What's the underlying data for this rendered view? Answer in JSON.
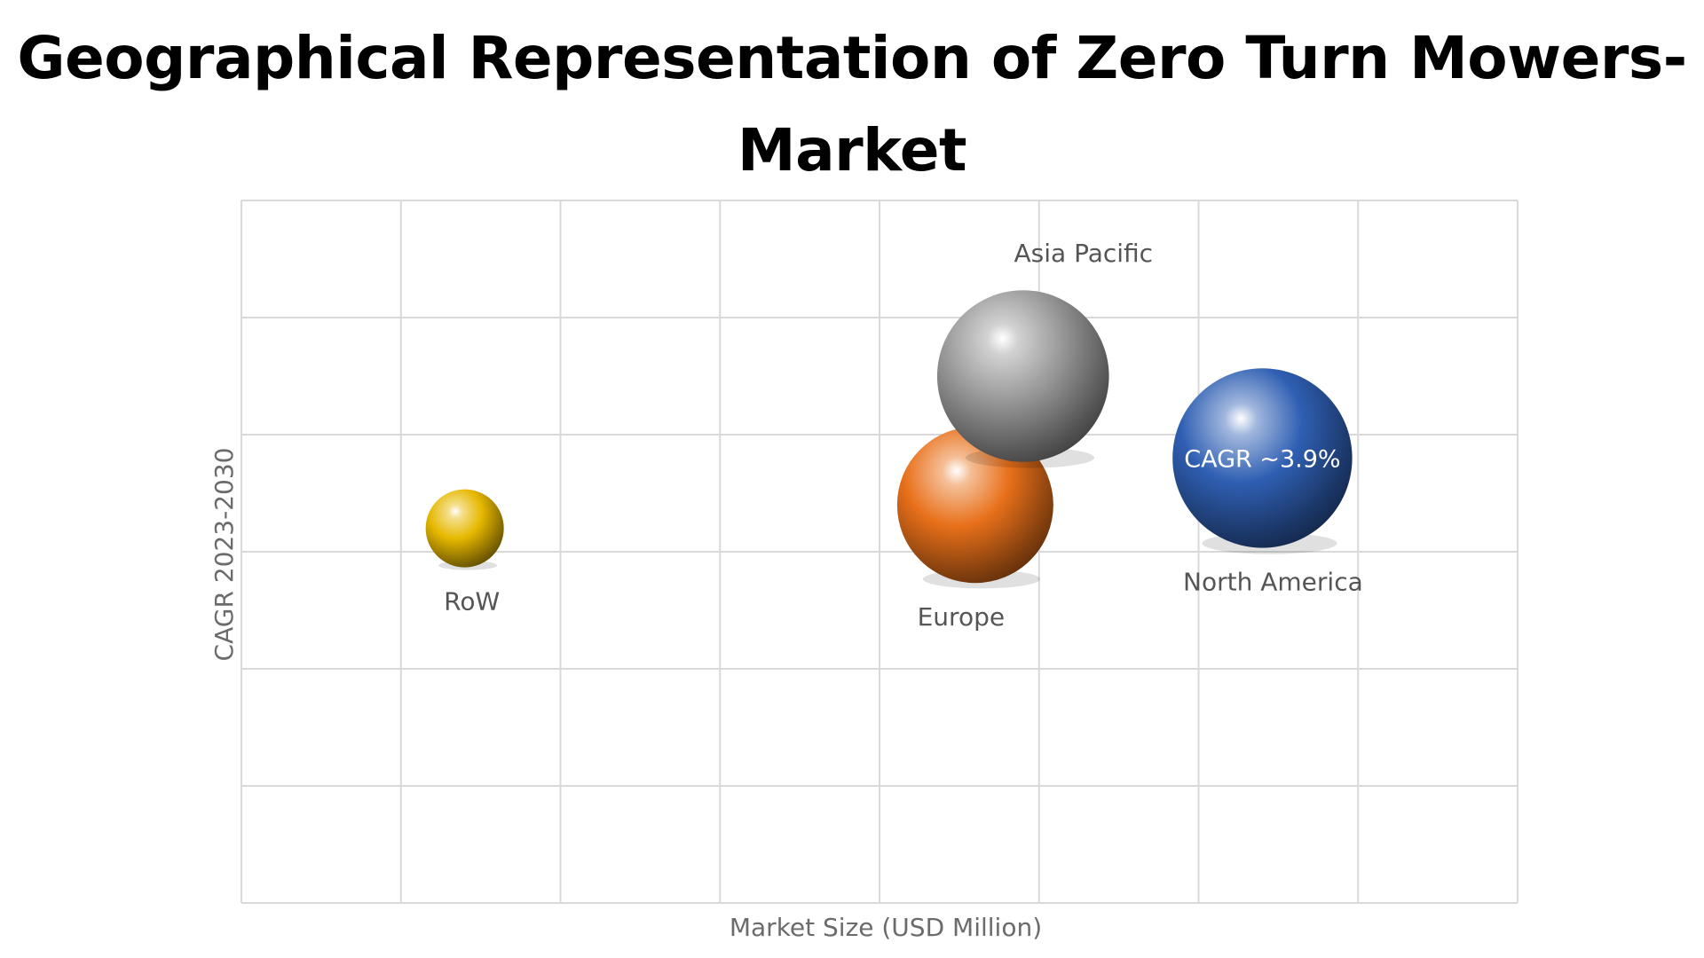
{
  "title_line1": "Geographical Representation of Zero Turn Mowers-",
  "title_line2": "Market",
  "chart_data": {
    "type": "bubble",
    "title": "Geographical Representation of Zero Turn Mowers- Market",
    "xlabel": "Market Size (USD Million)",
    "ylabel": "CAGR 2023-2030",
    "grid": true,
    "x_ticks_shown": false,
    "y_ticks_shown": false,
    "series": [
      {
        "name": "RoW",
        "x": 1.4,
        "y": 3.2,
        "size": 1.0,
        "color": "#e6b800"
      },
      {
        "name": "Europe",
        "x": 4.6,
        "y": 3.4,
        "size": 2.0,
        "color": "#e8701a"
      },
      {
        "name": "Asia Pacific",
        "x": 4.9,
        "y": 4.5,
        "size": 2.2,
        "color": "#9a9a9a"
      },
      {
        "name": "North America",
        "x": 6.4,
        "y": 3.8,
        "size": 2.3,
        "color": "#2f5fb3",
        "annotation": "CAGR ~3.9%"
      }
    ]
  }
}
